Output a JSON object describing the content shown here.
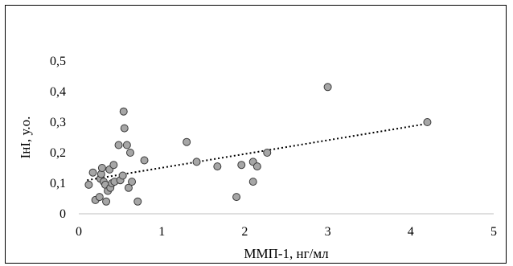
{
  "chart_data": {
    "type": "scatter",
    "title": "",
    "xlabel": "ММП-1, нг/мл",
    "ylabel": "ІнІ, у.о.",
    "xlim": [
      0,
      5
    ],
    "ylim": [
      0,
      0.5
    ],
    "x_ticks": [
      "0",
      "1",
      "2",
      "3",
      "4",
      "5"
    ],
    "y_ticks": [
      "0",
      "0,1",
      "0,2",
      "0,3",
      "0,4",
      "0,5"
    ],
    "grid": false,
    "legend": "none",
    "marker_color": "#a6a6a6",
    "marker_edge_color": "#3a3a3a",
    "trendline": {
      "type": "linear",
      "style": "dotted",
      "from": [
        0.1,
        0.11
      ],
      "to": [
        4.2,
        0.295
      ]
    },
    "points": [
      [
        0.12,
        0.095
      ],
      [
        0.17,
        0.135
      ],
      [
        0.2,
        0.045
      ],
      [
        0.25,
        0.055
      ],
      [
        0.26,
        0.115
      ],
      [
        0.27,
        0.13
      ],
      [
        0.28,
        0.15
      ],
      [
        0.3,
        0.105
      ],
      [
        0.32,
        0.095
      ],
      [
        0.33,
        0.04
      ],
      [
        0.35,
        0.075
      ],
      [
        0.37,
        0.145
      ],
      [
        0.38,
        0.085
      ],
      [
        0.4,
        0.1
      ],
      [
        0.42,
        0.16
      ],
      [
        0.43,
        0.105
      ],
      [
        0.48,
        0.225
      ],
      [
        0.5,
        0.11
      ],
      [
        0.53,
        0.125
      ],
      [
        0.54,
        0.335
      ],
      [
        0.55,
        0.28
      ],
      [
        0.58,
        0.225
      ],
      [
        0.6,
        0.085
      ],
      [
        0.62,
        0.2
      ],
      [
        0.64,
        0.105
      ],
      [
        0.71,
        0.04
      ],
      [
        0.79,
        0.175
      ],
      [
        1.3,
        0.235
      ],
      [
        1.42,
        0.17
      ],
      [
        1.67,
        0.155
      ],
      [
        1.9,
        0.055
      ],
      [
        1.96,
        0.16
      ],
      [
        2.1,
        0.105
      ],
      [
        2.1,
        0.17
      ],
      [
        2.15,
        0.155
      ],
      [
        2.27,
        0.2
      ],
      [
        3.0,
        0.415
      ],
      [
        4.2,
        0.3
      ]
    ]
  }
}
